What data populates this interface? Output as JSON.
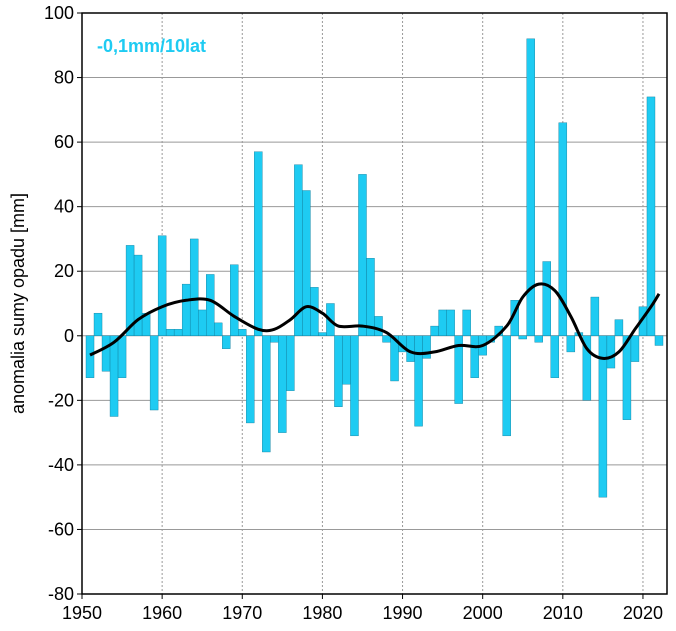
{
  "chart_data": {
    "type": "bar",
    "annotation": "-0,1mm/10lat",
    "ylabel": "anomalia sumy opadu [mm]",
    "xlim": [
      1950,
      2023
    ],
    "ylim": [
      -80,
      100
    ],
    "xticks": [
      1950,
      1960,
      1970,
      1980,
      1990,
      2000,
      2010,
      2020
    ],
    "yticks": [
      -80,
      -60,
      -40,
      -20,
      0,
      20,
      40,
      60,
      80,
      100
    ],
    "x_grid": "dotted",
    "y_grid": "solid",
    "colors": {
      "bars": "#1ecbf2",
      "trend": "#000000",
      "annotation": "#1ecbf2",
      "grid": "#999999"
    },
    "bars": {
      "x": [
        1951,
        1952,
        1953,
        1954,
        1955,
        1956,
        1957,
        1958,
        1959,
        1960,
        1961,
        1962,
        1963,
        1964,
        1965,
        1966,
        1967,
        1968,
        1969,
        1970,
        1971,
        1972,
        1973,
        1974,
        1975,
        1976,
        1977,
        1978,
        1979,
        1980,
        1981,
        1982,
        1983,
        1984,
        1985,
        1986,
        1987,
        1988,
        1989,
        1990,
        1991,
        1992,
        1993,
        1994,
        1995,
        1996,
        1997,
        1998,
        1999,
        2000,
        2001,
        2002,
        2003,
        2004,
        2005,
        2006,
        2007,
        2008,
        2009,
        2010,
        2011,
        2012,
        2013,
        2014,
        2015,
        2016,
        2017,
        2018,
        2019,
        2020,
        2021,
        2022
      ],
      "values": [
        -13,
        7,
        -11,
        -25,
        -13,
        28,
        25,
        7,
        -23,
        31,
        2,
        2,
        16,
        30,
        8,
        19,
        4,
        -4,
        22,
        2,
        -27,
        57,
        -36,
        -2,
        -30,
        -17,
        53,
        45,
        15,
        1,
        10,
        -22,
        -15,
        -31,
        50,
        24,
        6,
        -2,
        -14,
        -5,
        -8,
        -28,
        -7,
        3,
        8,
        8,
        -21,
        8,
        -13,
        -6,
        -2,
        3,
        -31,
        11,
        -1,
        92,
        -2,
        23,
        -13,
        66,
        -5,
        1,
        -20,
        12,
        -50,
        -10,
        5,
        -26,
        -8,
        9,
        74,
        -3
      ]
    },
    "trend": {
      "x": [
        1951,
        1954,
        1957,
        1960,
        1963,
        1966,
        1969,
        1972,
        1974,
        1976,
        1978,
        1980,
        1982,
        1985,
        1988,
        1991,
        1994,
        1997,
        2000,
        2003,
        2005,
        2007,
        2009,
        2011,
        2013,
        2015,
        2017,
        2019,
        2021,
        2022
      ],
      "values": [
        -6,
        -2,
        5,
        9,
        11,
        11,
        6,
        2,
        2,
        5,
        9,
        7,
        3,
        3,
        1,
        -5,
        -5,
        -3,
        -3,
        3,
        12,
        16,
        14,
        6,
        -4,
        -7,
        -5,
        2,
        9,
        13
      ]
    }
  }
}
